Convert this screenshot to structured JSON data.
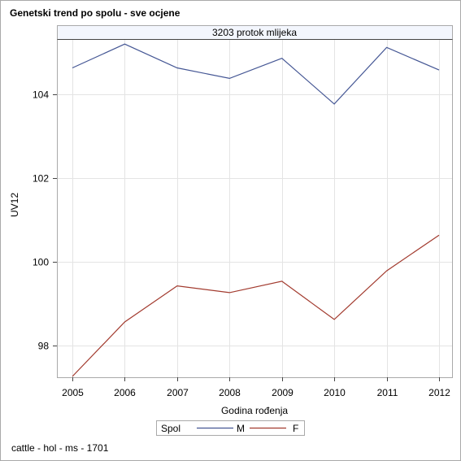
{
  "title": "Genetski trend po spolu - sve ocjene",
  "footer": "cattle - hol - ms - 1701",
  "chart_data": {
    "type": "line",
    "panel_label": "3203 protok mlijeka",
    "xlabel": "Godina rođenja",
    "ylabel": "UV12",
    "x": [
      2005,
      2006,
      2007,
      2008,
      2009,
      2010,
      2011,
      2012
    ],
    "x_ticks": [
      "2005",
      "2006",
      "2007",
      "2008",
      "2009",
      "2010",
      "2011",
      "2012"
    ],
    "y_ticks": [
      "98",
      "100",
      "102",
      "104"
    ],
    "ylim": [
      97.25,
      105.3
    ],
    "grid": true,
    "legend_title": "Spol",
    "legend_position": "bottom",
    "series": [
      {
        "name": "M",
        "color": "#445694",
        "values": [
          104.63,
          105.2,
          104.63,
          104.38,
          104.86,
          103.77,
          105.12,
          104.58
        ]
      },
      {
        "name": "F",
        "color": "#a23a2e",
        "values": [
          97.27,
          98.57,
          99.43,
          99.27,
          99.54,
          98.63,
          99.79,
          100.64
        ]
      }
    ]
  }
}
